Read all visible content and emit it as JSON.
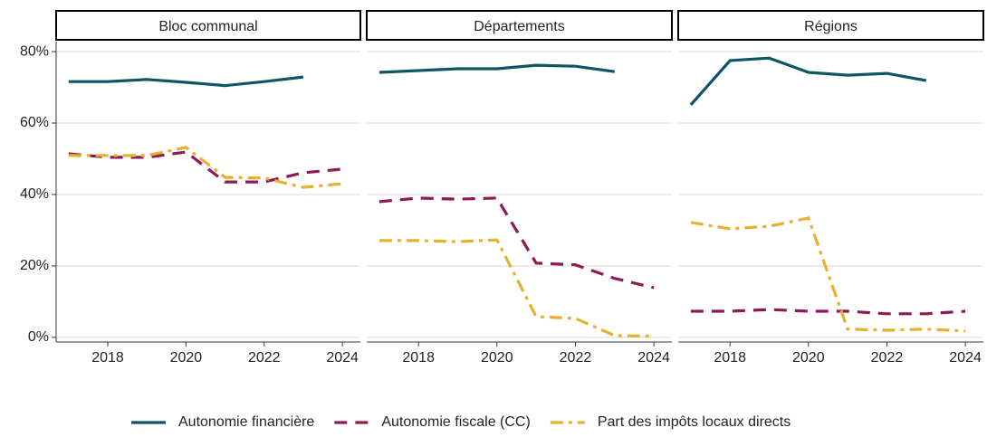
{
  "chart_data": {
    "type": "line",
    "facets": [
      "Bloc communal",
      "Départements",
      "Régions"
    ],
    "x": [
      2017,
      2018,
      2019,
      2020,
      2021,
      2022,
      2023,
      2024
    ],
    "xlim": [
      2016.68,
      2024.46
    ],
    "xticks": [
      2018,
      2020,
      2022,
      2024
    ],
    "ylim": [
      -1.3,
      82.8
    ],
    "yticks": [
      {
        "value": 0,
        "label": "0%"
      },
      {
        "value": 20,
        "label": "20%"
      },
      {
        "value": 40,
        "label": "40%"
      },
      {
        "value": 60,
        "label": "60%"
      },
      {
        "value": 80,
        "label": "80%"
      }
    ],
    "grid": true,
    "legend": "bottom",
    "series": [
      {
        "name": "Autonomie financière",
        "color": "#0f5566",
        "dash": "solid",
        "values": [
          [
            71.6,
            71.6,
            72.2,
            71.4,
            70.5,
            71.6,
            72.9,
            null
          ],
          [
            74.2,
            74.7,
            75.2,
            75.2,
            76.2,
            75.9,
            74.4,
            null
          ],
          [
            65.1,
            77.5,
            78.2,
            74.2,
            73.4,
            73.9,
            71.9,
            null
          ]
        ]
      },
      {
        "name": "Autonomie fiscale (CC)",
        "color": "#8c1a55",
        "dash": "dashed",
        "values": [
          [
            51.4,
            50.4,
            50.4,
            51.9,
            43.5,
            43.5,
            46.1,
            47.1
          ],
          [
            38.0,
            39.0,
            38.7,
            39.0,
            20.8,
            20.3,
            16.5,
            13.9
          ],
          [
            7.3,
            7.3,
            7.8,
            7.3,
            7.3,
            6.6,
            6.6,
            7.3
          ]
        ]
      },
      {
        "name": "Part des impôts locaux directs",
        "color": "#e6b12e",
        "dash": "dotdash",
        "values": [
          [
            50.9,
            50.9,
            50.9,
            53.2,
            44.8,
            44.6,
            42.0,
            43.0
          ],
          [
            27.1,
            27.1,
            26.8,
            27.3,
            5.8,
            5.3,
            0.5,
            0.3
          ],
          [
            32.2,
            30.4,
            31.1,
            33.4,
            2.3,
            2.0,
            2.3,
            1.8
          ]
        ]
      }
    ]
  }
}
